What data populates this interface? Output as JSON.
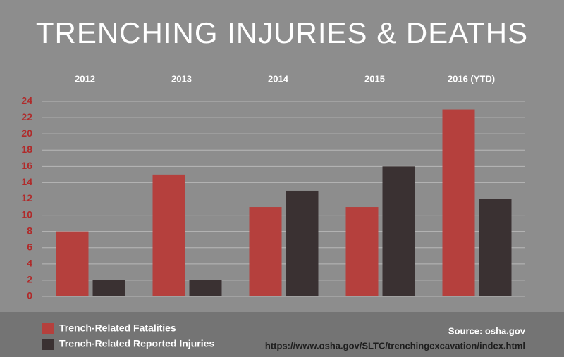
{
  "chart_data": {
    "type": "bar",
    "title": "TRENCHING INJURIES & DEATHS",
    "categories": [
      "2012",
      "2013",
      "2014",
      "2015",
      "2016 (YTD)"
    ],
    "series": [
      {
        "name": "Trench-Related Fatalities",
        "color": "#b5403d",
        "values": [
          8,
          15,
          11,
          11,
          23
        ]
      },
      {
        "name": "Trench-Related Reported Injuries",
        "color": "#3a3132",
        "values": [
          2,
          2,
          13,
          16,
          12
        ]
      }
    ],
    "ylim": [
      0,
      24
    ],
    "yticks": [
      0,
      2,
      4,
      6,
      8,
      10,
      12,
      14,
      16,
      18,
      20,
      22,
      24
    ],
    "grid": true,
    "source": "Source: osha.gov",
    "source_url": "https://www.osha.gov/SLTC/trenchingexcavation/index.html"
  }
}
